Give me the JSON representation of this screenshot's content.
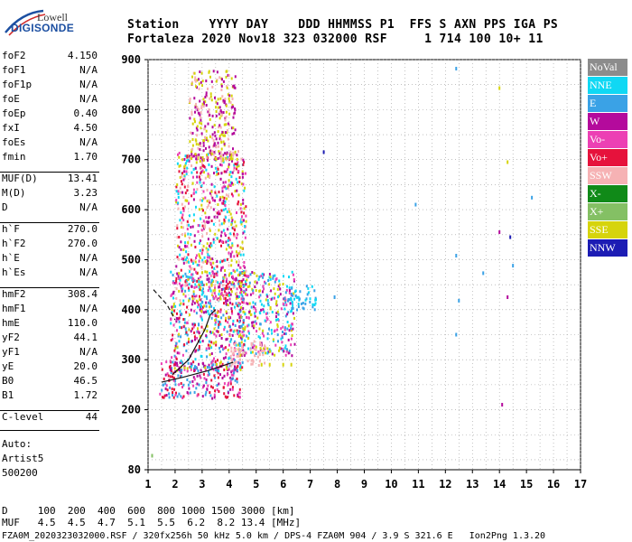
{
  "logo": {
    "line1": "Lowell",
    "line2": "DIGISONDE"
  },
  "header": {
    "top": "Station    YYYY DAY    DDD HHMMSS P1  FFS S AXN PPS IGA PS",
    "bottom": "Fortaleza 2020 Nov18 323 032000 RSF     1 714 100 10+ 11"
  },
  "params_group1": [
    {
      "name": "foF2",
      "value": "4.150"
    },
    {
      "name": "foF1",
      "value": "N/A"
    },
    {
      "name": "foF1p",
      "value": "N/A"
    },
    {
      "name": "foE",
      "value": "N/A"
    },
    {
      "name": "foEp",
      "value": "0.40"
    },
    {
      "name": "fxI",
      "value": "4.50"
    },
    {
      "name": "foEs",
      "value": "N/A"
    },
    {
      "name": "fmin",
      "value": "1.70"
    }
  ],
  "params_group2": [
    {
      "name": "MUF(D)",
      "value": "13.41"
    },
    {
      "name": "M(D)",
      "value": "3.23"
    },
    {
      "name": "D",
      "value": "N/A"
    }
  ],
  "params_group3": [
    {
      "name": "h`F",
      "value": "270.0"
    },
    {
      "name": "h`F2",
      "value": "270.0"
    },
    {
      "name": "h`E",
      "value": "N/A"
    },
    {
      "name": "h`Es",
      "value": "N/A"
    }
  ],
  "params_group4": [
    {
      "name": "hmF2",
      "value": "308.4"
    },
    {
      "name": "hmF1",
      "value": "N/A"
    },
    {
      "name": "hmE",
      "value": "110.0"
    },
    {
      "name": "yF2",
      "value": "44.1"
    },
    {
      "name": "yF1",
      "value": "N/A"
    },
    {
      "name": "yE",
      "value": "20.0"
    },
    {
      "name": "B0",
      "value": "46.5"
    },
    {
      "name": "B1",
      "value": "1.72"
    }
  ],
  "params_group5": [
    {
      "name": "C-level",
      "value": "44"
    }
  ],
  "auto_lines": [
    "Auto:",
    "Artist5",
    "500200"
  ],
  "legend": [
    {
      "label": "NoVal",
      "color": "#8c8c8c"
    },
    {
      "label": "NNE",
      "color": "#10d8f4"
    },
    {
      "label": "E",
      "color": "#3aa2e6"
    },
    {
      "label": "W",
      "color": "#b40a9c"
    },
    {
      "label": "Vo-",
      "color": "#ec40b4"
    },
    {
      "label": "Vo+",
      "color": "#e6123c"
    },
    {
      "label": "SSW",
      "color": "#f6b2b4"
    },
    {
      "label": "X-",
      "color": "#108a18"
    },
    {
      "label": "X+",
      "color": "#84c064"
    },
    {
      "label": "SSE",
      "color": "#d6d40c"
    },
    {
      "label": "NNW",
      "color": "#1c1cb4"
    }
  ],
  "footer": {
    "d_row": "D     100  200  400  600  800 1000 1500 3000 [km]",
    "muf_row": "MUF   4.5  4.5  4.7  5.1  5.5  6.2  8.2 13.4 [MHz]",
    "info_row": "FZA0M_2020323032000.RSF / 320fx256h 50 kHz 5.0 km / DPS-4 FZA0M 904 / 3.9 S 321.6 E   Ion2Png 1.3.20"
  },
  "chart_data": {
    "type": "scatter",
    "xlabel": "",
    "ylabel": "",
    "xlim": [
      1,
      17
    ],
    "ylim": [
      80,
      900
    ],
    "xticks": [
      1,
      2,
      3,
      4,
      5,
      6,
      7,
      8,
      9,
      10,
      11,
      12,
      13,
      14,
      15,
      16,
      17
    ],
    "yticks": [
      80,
      200,
      300,
      400,
      500,
      600,
      700,
      800,
      900
    ],
    "grid": "dotted",
    "legend_position": "right",
    "echo_clouds": [
      {
        "name": "bottom-side trace",
        "x_range": [
          1.4,
          4.4
        ],
        "y_range": [
          225,
          300
        ],
        "colors": [
          "#e6123c",
          "#ec40b4",
          "#3aa2e6",
          "#b40a9c"
        ]
      },
      {
        "name": "spread F mid",
        "x_range": [
          1.8,
          4.6
        ],
        "y_range": [
          280,
          480
        ],
        "colors": [
          "#b40a9c",
          "#ec40b4",
          "#e6123c",
          "#3aa2e6",
          "#10d8f4",
          "#d6d40c"
        ]
      },
      {
        "name": "spread F upper",
        "x_range": [
          2.0,
          4.6
        ],
        "y_range": [
          420,
          720
        ],
        "colors": [
          "#d6d40c",
          "#f6b2b4",
          "#e6123c",
          "#b40a9c",
          "#ec40b4",
          "#10d8f4"
        ]
      },
      {
        "name": "spread F top",
        "x_range": [
          2.5,
          4.2
        ],
        "y_range": [
          700,
          880
        ],
        "colors": [
          "#d6d40c",
          "#f6b2b4",
          "#b40a9c"
        ]
      },
      {
        "name": "F2 extension",
        "x_range": [
          4.3,
          6.4
        ],
        "y_range": [
          310,
          480
        ],
        "colors": [
          "#3aa2e6",
          "#10d8f4",
          "#d6d40c",
          "#ec40b4",
          "#b40a9c"
        ]
      },
      {
        "name": "SSW patch",
        "x_range": [
          4.0,
          5.3
        ],
        "y_range": [
          290,
          340
        ],
        "colors": [
          "#f6b2b4"
        ]
      },
      {
        "name": "E tail",
        "x_range": [
          6.2,
          7.2
        ],
        "y_range": [
          400,
          450
        ],
        "colors": [
          "#3aa2e6",
          "#10d8f4"
        ]
      }
    ],
    "isolated_points": [
      {
        "x": 1.15,
        "y": 108,
        "color": "#84c064"
      },
      {
        "x": 5.2,
        "y": 290,
        "color": "#d6d40c"
      },
      {
        "x": 5.5,
        "y": 290,
        "color": "#d6d40c"
      },
      {
        "x": 6.0,
        "y": 290,
        "color": "#d6d40c"
      },
      {
        "x": 6.3,
        "y": 290,
        "color": "#d6d40c"
      },
      {
        "x": 7.5,
        "y": 715,
        "color": "#1c1cb4"
      },
      {
        "x": 7.9,
        "y": 425,
        "color": "#3aa2e6"
      },
      {
        "x": 10.9,
        "y": 610,
        "color": "#3aa2e6"
      },
      {
        "x": 12.4,
        "y": 882,
        "color": "#3aa2e6"
      },
      {
        "x": 12.4,
        "y": 508,
        "color": "#3aa2e6"
      },
      {
        "x": 12.5,
        "y": 418,
        "color": "#3aa2e6"
      },
      {
        "x": 12.4,
        "y": 350,
        "color": "#3aa2e6"
      },
      {
        "x": 13.4,
        "y": 473,
        "color": "#3aa2e6"
      },
      {
        "x": 14.0,
        "y": 843,
        "color": "#d6d40c"
      },
      {
        "x": 14.3,
        "y": 695,
        "color": "#d6d40c"
      },
      {
        "x": 14.0,
        "y": 555,
        "color": "#b40a9c"
      },
      {
        "x": 14.4,
        "y": 545,
        "color": "#1c1cb4"
      },
      {
        "x": 14.5,
        "y": 488,
        "color": "#3aa2e6"
      },
      {
        "x": 14.3,
        "y": 425,
        "color": "#b40a9c"
      },
      {
        "x": 14.1,
        "y": 210,
        "color": "#b40a9c"
      },
      {
        "x": 15.2,
        "y": 624,
        "color": "#3aa2e6"
      }
    ],
    "overlay_lines": [
      {
        "name": "profile-lower",
        "style": "solid",
        "points": [
          [
            1.5,
            255
          ],
          [
            2.3,
            265
          ],
          [
            3.2,
            278
          ],
          [
            4.15,
            295
          ]
        ]
      },
      {
        "name": "profile-upper",
        "style": "solid",
        "points": [
          [
            1.9,
            270
          ],
          [
            2.5,
            300
          ],
          [
            3.1,
            360
          ],
          [
            3.3,
            390
          ],
          [
            3.5,
            400
          ]
        ]
      },
      {
        "name": "profile-extrapolation",
        "style": "dashed",
        "points": [
          [
            1.2,
            440
          ],
          [
            1.7,
            410
          ],
          [
            2.0,
            380
          ]
        ]
      }
    ]
  }
}
